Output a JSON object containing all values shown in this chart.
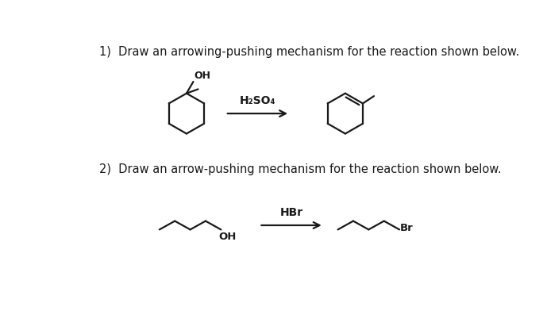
{
  "background_color": "#ffffff",
  "title1": "1)  Draw an arrowing-pushing mechanism for the reaction shown below.",
  "title2": "2)  Draw an arrow-pushing mechanism for the reaction shown below.",
  "title_fontsize": 10.5,
  "reagent1": "H₂SO₄",
  "reagent2": "HBr",
  "text_color": "#1a1a1a",
  "line_color": "#1a1a1a",
  "line_width": 1.6
}
